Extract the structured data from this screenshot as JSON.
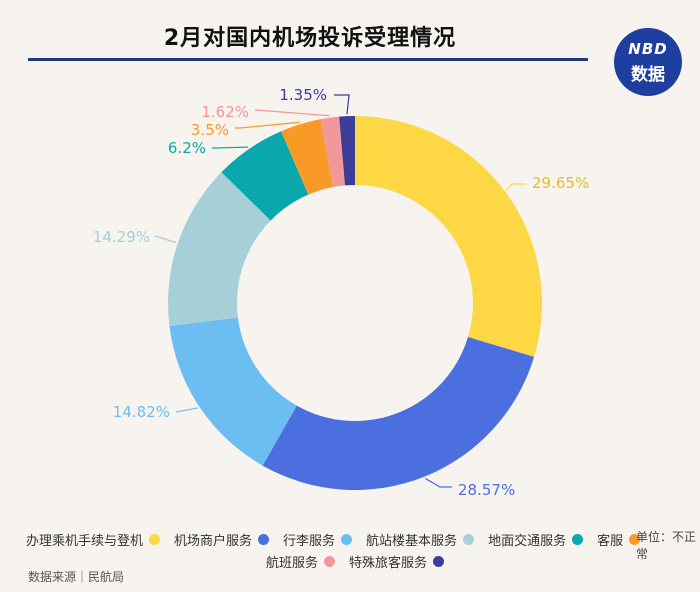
{
  "title": "2月对国内机场投诉受理情况",
  "logo": {
    "line1": "NBD",
    "line2": "数据"
  },
  "unit_label": "单位：不正常",
  "source_label": "数据来源｜民航局",
  "chart_data": {
    "type": "pie",
    "variant": "donut",
    "title": "2月对国内机场投诉受理情况",
    "categories": [
      "办理乘机手续与登机",
      "机场商户服务",
      "行李服务",
      "航站楼基本服务",
      "地面交通服务",
      "客服",
      "航班服务",
      "特殊旅客服务"
    ],
    "values": [
      29.65,
      28.57,
      14.82,
      14.29,
      6.2,
      3.5,
      1.62,
      1.35
    ],
    "labels": [
      "29.65%",
      "28.57%",
      "14.82%",
      "14.29%",
      "6.2%",
      "3.5%",
      "1.62%",
      "1.35%"
    ],
    "colors": [
      "#fdd844",
      "#4c6fe0",
      "#6cbdf2",
      "#a7cfd8",
      "#0aa8ad",
      "#f99a26",
      "#f39898",
      "#3c3c99"
    ],
    "legend_position": "bottom"
  }
}
